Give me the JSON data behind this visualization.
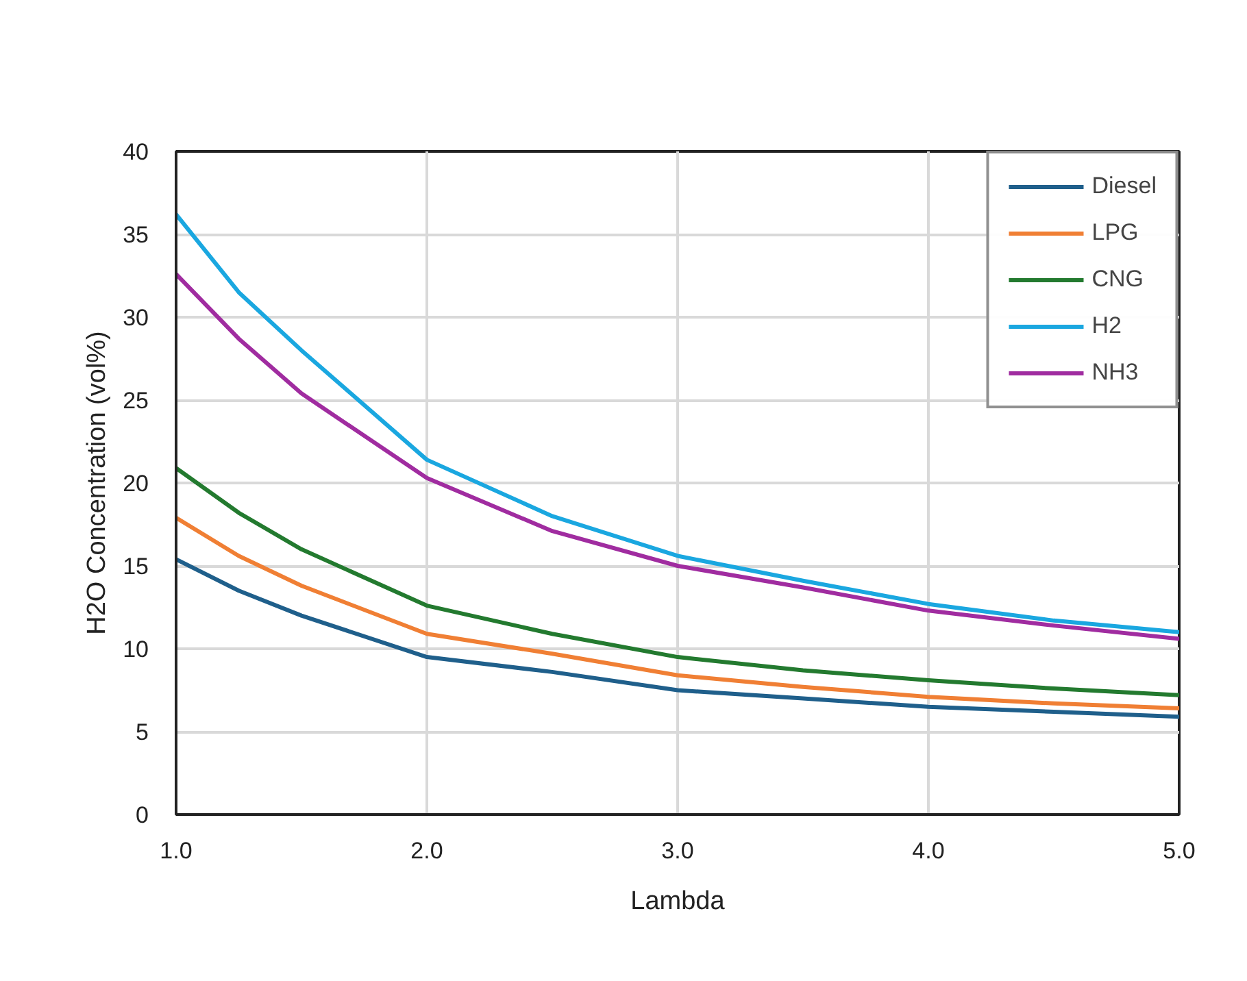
{
  "chart_data": {
    "type": "line",
    "xlabel": "Lambda",
    "ylabel": "H2O Concentration (vol%)",
    "x": [
      1,
      1.25,
      1.5,
      2,
      2.5,
      3,
      3.5,
      4,
      4.5,
      5
    ],
    "series": [
      {
        "name": "Diesel",
        "color": "#1f5f8b",
        "values": [
          15.4,
          13.5,
          12.0,
          9.5,
          8.6,
          7.5,
          7.0,
          6.5,
          6.2,
          5.9
        ]
      },
      {
        "name": "LPG",
        "color": "#f07f34",
        "values": [
          17.9,
          15.6,
          13.8,
          10.9,
          9.7,
          8.4,
          7.7,
          7.1,
          6.7,
          6.4
        ]
      },
      {
        "name": "CNG",
        "color": "#237a2f",
        "values": [
          20.9,
          18.2,
          16.0,
          12.6,
          10.9,
          9.5,
          8.7,
          8.1,
          7.6,
          7.2
        ]
      },
      {
        "name": "H2",
        "color": "#1aa7e0",
        "values": [
          36.2,
          31.5,
          28.0,
          21.4,
          18.0,
          15.6,
          14.1,
          12.7,
          11.7,
          11.0
        ]
      },
      {
        "name": "NH3",
        "color": "#a02ca0",
        "values": [
          32.6,
          28.7,
          25.4,
          20.3,
          17.1,
          15.0,
          13.7,
          12.3,
          11.4,
          10.6
        ]
      }
    ],
    "xlim": [
      1,
      5
    ],
    "ylim": [
      0,
      40
    ],
    "xticks": [
      {
        "value": 1,
        "label": "1.0"
      },
      {
        "value": 2,
        "label": "2.0"
      },
      {
        "value": 3,
        "label": "3.0"
      },
      {
        "value": 4,
        "label": "4.0"
      },
      {
        "value": 5,
        "label": "5.0"
      }
    ],
    "yticks": [
      0,
      5,
      10,
      15,
      20,
      25,
      30,
      35,
      40
    ],
    "grid": true,
    "legend": "top right",
    "marker": "none",
    "line_style": "solid"
  }
}
